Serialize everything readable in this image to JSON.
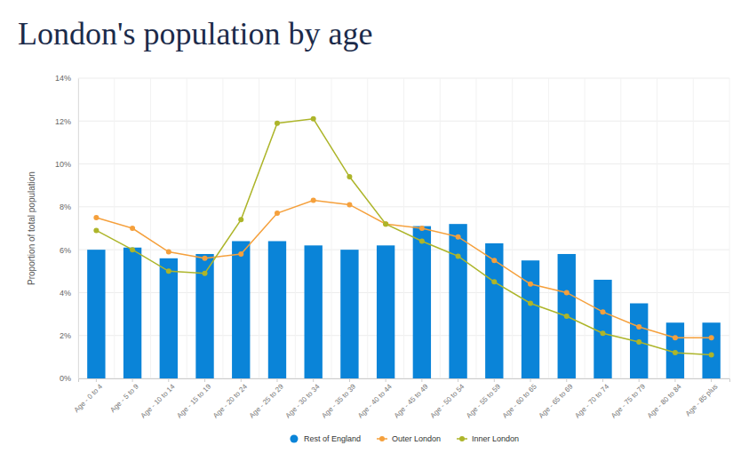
{
  "chart_data": {
    "type": "bar",
    "title": "London's population by age",
    "y_label": "Proportion of total population",
    "categories": [
      "Age - 0 to 4",
      "Age - 5 to 9",
      "Age - 10 to 14",
      "Age - 15 to 19",
      "Age - 20 to 24",
      "Age - 25 to 29",
      "Age - 30 to 34",
      "Age - 35 to 39",
      "Age - 40 to 44",
      "Age - 45 to 49",
      "Age - 50 to 54",
      "Age - 55 to 59",
      "Age - 60 to 65",
      "Age - 65 to 69",
      "Age - 70 to 74",
      "Age - 75 to 79",
      "Age - 80 to 84",
      "Age - 85 plus"
    ],
    "series": [
      {
        "name": "Rest of England",
        "type": "bar",
        "color": "#0a84d8",
        "values": [
          6.0,
          6.1,
          5.6,
          5.8,
          6.4,
          6.4,
          6.2,
          6.0,
          6.2,
          7.1,
          7.2,
          6.3,
          5.5,
          5.8,
          4.6,
          3.5,
          2.6,
          2.6
        ]
      },
      {
        "name": "Outer London",
        "type": "line",
        "color": "#f5a03c",
        "marker": "circle",
        "values": [
          7.5,
          7.0,
          5.9,
          5.6,
          5.8,
          7.7,
          8.3,
          8.1,
          7.2,
          7.0,
          6.6,
          5.5,
          4.4,
          4.0,
          3.1,
          2.4,
          1.9,
          1.9
        ]
      },
      {
        "name": "Inner London",
        "type": "line",
        "color": "#adb52a",
        "marker": "circle",
        "values": [
          6.9,
          6.0,
          5.0,
          4.9,
          7.4,
          11.9,
          12.1,
          9.4,
          7.2,
          6.4,
          5.7,
          4.5,
          3.5,
          2.9,
          2.1,
          1.7,
          1.2,
          1.1
        ]
      }
    ],
    "ylim": [
      0,
      14
    ],
    "yticks": [
      {
        "value": 0,
        "label": "0%"
      },
      {
        "value": 2,
        "label": "2%"
      },
      {
        "value": 4,
        "label": "4%"
      },
      {
        "value": 6,
        "label": "6%"
      },
      {
        "value": 8,
        "label": "8%"
      },
      {
        "value": 10,
        "label": "10%"
      },
      {
        "value": 12,
        "label": "12%"
      },
      {
        "value": 14,
        "label": "14%"
      }
    ],
    "grid": true,
    "legend": "bottom"
  }
}
